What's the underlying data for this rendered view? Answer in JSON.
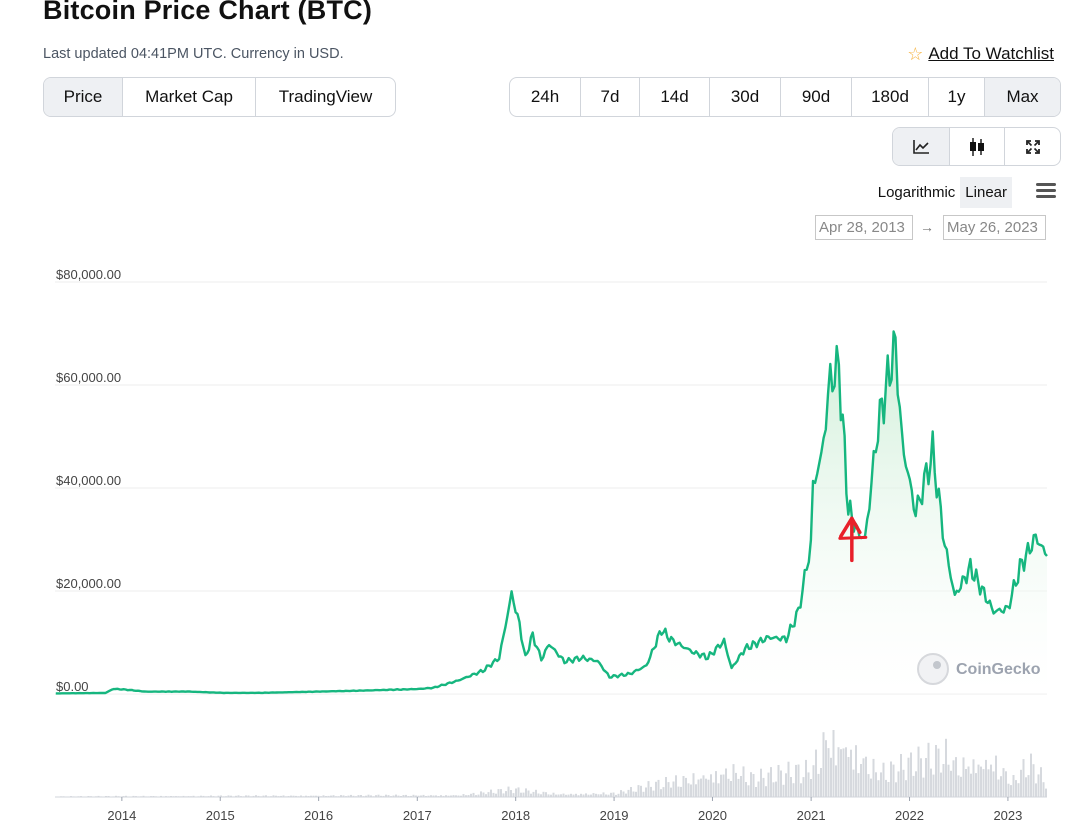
{
  "page": {
    "title": "Bitcoin Price Chart (BTC)",
    "last_updated": "Last updated 04:41PM UTC. Currency in USD.",
    "watchlist_label": "Add To Watchlist"
  },
  "tabs": [
    {
      "label": "Price",
      "active": true
    },
    {
      "label": "Market Cap",
      "active": false
    },
    {
      "label": "TradingView",
      "active": false
    }
  ],
  "ranges": [
    {
      "label": "24h",
      "active": false
    },
    {
      "label": "7d",
      "active": false
    },
    {
      "label": "14d",
      "active": false
    },
    {
      "label": "30d",
      "active": false
    },
    {
      "label": "90d",
      "active": false
    },
    {
      "label": "180d",
      "active": false
    },
    {
      "label": "1y",
      "active": false
    },
    {
      "label": "Max",
      "active": true
    }
  ],
  "view_buttons": [
    {
      "icon": "line-chart-icon",
      "active": true
    },
    {
      "icon": "candlestick-icon",
      "active": false
    },
    {
      "icon": "fullscreen-icon",
      "active": false
    }
  ],
  "scale": {
    "logarithmic": "Logarithmic",
    "linear": "Linear",
    "active": "Linear"
  },
  "date_range": {
    "from": "Apr 28, 2013",
    "arrow": "→",
    "to": "May 26, 2023"
  },
  "watermark": "CoinGecko",
  "colors": {
    "line": "#16b67f",
    "area_top": "#c8ecd2",
    "volume": "#d6d9de",
    "annotation": "#e8202a",
    "star": "#f6b23d"
  },
  "chart_data": {
    "type": "area",
    "series": [
      {
        "name": "Price",
        "points": [
          [
            "2013-05-01",
            120
          ],
          [
            "2013-11-01",
            200
          ],
          [
            "2013-12-01",
            1000
          ],
          [
            "2014-01-15",
            850
          ],
          [
            "2014-04-01",
            450
          ],
          [
            "2014-09-01",
            480
          ],
          [
            "2015-01-15",
            220
          ],
          [
            "2015-06-01",
            230
          ],
          [
            "2015-12-01",
            430
          ],
          [
            "2016-06-01",
            650
          ],
          [
            "2016-12-31",
            960
          ],
          [
            "2017-03-01",
            1200
          ],
          [
            "2017-06-01",
            2600
          ],
          [
            "2017-09-01",
            4500
          ],
          [
            "2017-11-01",
            7000
          ],
          [
            "2017-12-17",
            19500
          ],
          [
            "2018-01-15",
            13500
          ],
          [
            "2018-02-06",
            7000
          ],
          [
            "2018-03-05",
            11500
          ],
          [
            "2018-04-06",
            6700
          ],
          [
            "2018-05-05",
            9700
          ],
          [
            "2018-07-01",
            6300
          ],
          [
            "2018-09-01",
            7000
          ],
          [
            "2018-11-01",
            6400
          ],
          [
            "2018-12-15",
            3300
          ],
          [
            "2019-03-01",
            3900
          ],
          [
            "2019-05-01",
            5500
          ],
          [
            "2019-06-26",
            12500
          ],
          [
            "2019-08-01",
            10500
          ],
          [
            "2019-10-25",
            8000
          ],
          [
            "2019-12-15",
            7100
          ],
          [
            "2020-02-13",
            10300
          ],
          [
            "2020-03-12",
            5000
          ],
          [
            "2020-05-01",
            8800
          ],
          [
            "2020-07-27",
            11000
          ],
          [
            "2020-10-01",
            10700
          ],
          [
            "2020-11-15",
            16000
          ],
          [
            "2020-12-31",
            29000
          ],
          [
            "2021-01-08",
            40500
          ],
          [
            "2021-02-08",
            46000
          ],
          [
            "2021-03-13",
            61000
          ],
          [
            "2021-04-14",
            63500
          ],
          [
            "2021-05-19",
            36000
          ],
          [
            "2021-06-22",
            31500
          ],
          [
            "2021-07-20",
            30000
          ],
          [
            "2021-09-06",
            52000
          ],
          [
            "2021-11-10",
            68000
          ],
          [
            "2021-12-04",
            49000
          ],
          [
            "2022-01-24",
            35000
          ],
          [
            "2022-03-28",
            47000
          ],
          [
            "2022-05-12",
            29000
          ],
          [
            "2022-06-18",
            19000
          ],
          [
            "2022-08-15",
            24500
          ],
          [
            "2022-11-09",
            16000
          ],
          [
            "2022-12-31",
            16500
          ],
          [
            "2023-02-15",
            24500
          ],
          [
            "2023-04-14",
            30500
          ],
          [
            "2023-05-26",
            26800
          ]
        ]
      },
      {
        "name": "Volume",
        "points": [
          [
            "2013-05-01",
            0.01
          ],
          [
            "2017-06-01",
            0.03
          ],
          [
            "2017-12-17",
            0.12
          ],
          [
            "2018-06-01",
            0.05
          ],
          [
            "2019-01-01",
            0.06
          ],
          [
            "2019-06-26",
            0.22
          ],
          [
            "2020-03-12",
            0.45
          ],
          [
            "2020-06-01",
            0.3
          ],
          [
            "2020-12-31",
            0.45
          ],
          [
            "2021-02-22",
            1.0
          ],
          [
            "2021-05-19",
            0.85
          ],
          [
            "2021-09-06",
            0.4
          ],
          [
            "2021-11-10",
            0.45
          ],
          [
            "2022-05-12",
            0.7
          ],
          [
            "2022-06-18",
            0.55
          ],
          [
            "2022-11-09",
            0.6
          ],
          [
            "2023-01-15",
            0.25
          ],
          [
            "2023-03-15",
            0.55
          ],
          [
            "2023-05-26",
            0.2
          ]
        ]
      }
    ],
    "y_ticks": [
      {
        "value": 0,
        "label": "$0.00"
      },
      {
        "value": 20000,
        "label": "$20,000.00"
      },
      {
        "value": 40000,
        "label": "$40,000.00"
      },
      {
        "value": 60000,
        "label": "$60,000.00"
      },
      {
        "value": 80000,
        "label": "$80,000.00"
      }
    ],
    "ylim": [
      0,
      80000
    ],
    "x_ticks": [
      "2014",
      "2015",
      "2016",
      "2017",
      "2018",
      "2019",
      "2020",
      "2021",
      "2022",
      "2023"
    ],
    "xlim": [
      "2013-04-28",
      "2023-05-26"
    ],
    "grid": true,
    "annotation": {
      "shape": "arrow-up",
      "date": "2021-06-01",
      "value": 31000
    }
  }
}
